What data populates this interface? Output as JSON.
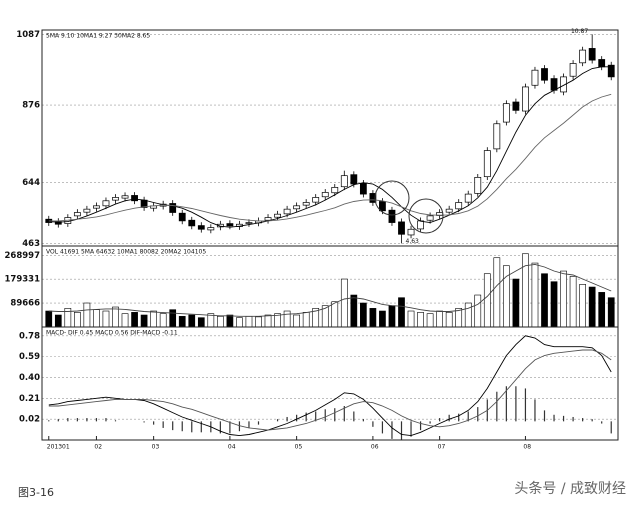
{
  "chart_data": [
    {
      "type": "candlestick",
      "legend_text": "5MA 9.10  10MA1 9.27  30MA2 8.65",
      "open": [
        535,
        528,
        522,
        545,
        556,
        568,
        575,
        592,
        598,
        606,
        592,
        568,
        574,
        582,
        553,
        532,
        516,
        503,
        512,
        522,
        513,
        522,
        524,
        532,
        541,
        551,
        566,
        577,
        586,
        602,
        614,
        632,
        668,
        642,
        612,
        588,
        562,
        527,
        488,
        506,
        532,
        546,
        556,
        566,
        586,
        612,
        662,
        745,
        825,
        885,
        858,
        935,
        985,
        955,
        915,
        962,
        1002,
        1045,
        1012,
        995
      ],
      "high": [
        545,
        538,
        550,
        565,
        575,
        585,
        600,
        610,
        615,
        616,
        602,
        585,
        590,
        592,
        563,
        542,
        526,
        520,
        530,
        532,
        530,
        535,
        540,
        550,
        560,
        575,
        585,
        595,
        610,
        625,
        640,
        680,
        678,
        652,
        622,
        598,
        572,
        537,
        515,
        540,
        555,
        565,
        575,
        595,
        620,
        670,
        750,
        830,
        890,
        895,
        940,
        990,
        995,
        965,
        970,
        1010,
        1050,
        1087,
        1022,
        1005
      ],
      "low": [
        515,
        510,
        512,
        535,
        546,
        558,
        565,
        582,
        588,
        580,
        560,
        558,
        564,
        545,
        520,
        505,
        495,
        493,
        502,
        505,
        503,
        512,
        514,
        522,
        531,
        541,
        556,
        567,
        576,
        592,
        604,
        622,
        630,
        600,
        575,
        550,
        515,
        463,
        478,
        496,
        522,
        536,
        546,
        556,
        576,
        602,
        652,
        735,
        815,
        850,
        848,
        925,
        940,
        910,
        905,
        952,
        992,
        1000,
        980,
        950
      ],
      "close": [
        525,
        520,
        540,
        555,
        565,
        575,
        590,
        600,
        605,
        590,
        570,
        575,
        580,
        555,
        530,
        515,
        505,
        510,
        520,
        515,
        520,
        525,
        530,
        540,
        550,
        565,
        575,
        585,
        600,
        615,
        630,
        665,
        640,
        610,
        585,
        560,
        525,
        490,
        505,
        530,
        545,
        555,
        565,
        585,
        610,
        660,
        740,
        820,
        880,
        860,
        930,
        980,
        950,
        920,
        960,
        1000,
        1040,
        1010,
        990,
        960
      ],
      "lines": [
        {
          "color": "#000000",
          "values": [
            528,
            526,
            528,
            535,
            545,
            556,
            568,
            580,
            590,
            595,
            592,
            585,
            578,
            575,
            568,
            556,
            541,
            525,
            514,
            511,
            514,
            519,
            524,
            530,
            537,
            546,
            556,
            567,
            578,
            592,
            608,
            624,
            638,
            644,
            640,
            624,
            600,
            572,
            547,
            529,
            525,
            535,
            547,
            560,
            575,
            599,
            631,
            680,
            738,
            795,
            845,
            880,
            905,
            920,
            935,
            950,
            970,
            985,
            990,
            990
          ]
        },
        {
          "color": "#666666",
          "values": [
            530,
            530,
            532,
            535,
            538,
            542,
            548,
            555,
            562,
            568,
            572,
            575,
            577,
            576,
            572,
            567,
            560,
            553,
            546,
            540,
            535,
            532,
            530,
            530,
            532,
            536,
            541,
            547,
            554,
            561,
            569,
            580,
            588,
            592,
            593,
            590,
            583,
            572,
            560,
            552,
            548,
            547,
            548,
            552,
            560,
            574,
            596,
            624,
            656,
            684,
            716,
            750,
            778,
            800,
            822,
            846,
            870,
            888,
            900,
            908
          ]
        }
      ],
      "up_color": "#ffffff",
      "down_color": "#000000",
      "annotations": [
        "10.87",
        "4.63"
      ],
      "ylim": [
        455,
        1100
      ],
      "yticks": [
        1087,
        876,
        644,
        463
      ],
      "grid": true
    },
    {
      "type": "bar",
      "legend_text": "VOL 41691  5MA 64632  10MA1 80082  20MA2 104105",
      "values": [
        60000,
        45000,
        70000,
        55000,
        90000,
        65000,
        60000,
        75000,
        50000,
        55000,
        45000,
        60000,
        50000,
        65000,
        40000,
        45000,
        35000,
        50000,
        40000,
        45000,
        35000,
        40000,
        38000,
        45000,
        50000,
        60000,
        45000,
        55000,
        70000,
        80000,
        95000,
        180000,
        120000,
        90000,
        70000,
        60000,
        80000,
        110000,
        60000,
        55000,
        50000,
        60000,
        55000,
        70000,
        90000,
        120000,
        200000,
        260000,
        230000,
        180000,
        275000,
        240000,
        200000,
        170000,
        210000,
        190000,
        160000,
        150000,
        130000,
        110000
      ],
      "lines": [
        {
          "color": "#444444",
          "values": [
            60000,
            58000,
            58000,
            60000,
            64000,
            66000,
            68000,
            68000,
            66000,
            62000,
            58000,
            56000,
            54000,
            52000,
            50000,
            48000,
            46000,
            44000,
            42000,
            42000,
            40000,
            40000,
            40000,
            42000,
            44000,
            48000,
            50000,
            54000,
            60000,
            70000,
            90000,
            105000,
            110000,
            105000,
            95000,
            85000,
            80000,
            78000,
            72000,
            65000,
            60000,
            58000,
            58000,
            62000,
            70000,
            85000,
            115000,
            155000,
            190000,
            210000,
            230000,
            235000,
            225000,
            210000,
            200000,
            195000,
            180000,
            165000,
            150000,
            135000
          ]
        }
      ],
      "ylim": [
        0,
        304000
      ],
      "yticks": [
        268997,
        179331,
        89666
      ],
      "grid": true
    },
    {
      "type": "line",
      "legend_text": "MACD- DIF 0.45  MACD 0.56  DIF-MACD -0.11",
      "categories": [
        "201301",
        null,
        null,
        null,
        null,
        "02",
        null,
        null,
        null,
        null,
        null,
        "03",
        null,
        null,
        null,
        null,
        null,
        null,
        null,
        "04",
        null,
        null,
        null,
        null,
        null,
        null,
        "05",
        null,
        null,
        null,
        null,
        null,
        null,
        null,
        "06",
        null,
        null,
        null,
        null,
        null,
        null,
        "07",
        null,
        null,
        null,
        null,
        null,
        null,
        null,
        null,
        "08",
        null,
        null,
        null,
        null,
        null,
        null,
        null,
        null,
        null
      ],
      "series": [
        {
          "color": "#000000",
          "values": [
            0.15,
            0.16,
            0.18,
            0.19,
            0.2,
            0.21,
            0.22,
            0.21,
            0.2,
            0.2,
            0.19,
            0.16,
            0.12,
            0.08,
            0.04,
            0.01,
            -0.02,
            -0.05,
            -0.09,
            -0.12,
            -0.13,
            -0.12,
            -0.1,
            -0.08,
            -0.05,
            -0.02,
            0.02,
            0.06,
            0.1,
            0.15,
            0.2,
            0.26,
            0.25,
            0.2,
            0.12,
            0.03,
            -0.06,
            -0.12,
            -0.13,
            -0.1,
            -0.06,
            -0.02,
            0.02,
            0.05,
            0.1,
            0.18,
            0.3,
            0.45,
            0.6,
            0.7,
            0.78,
            0.76,
            0.7,
            0.68,
            0.68,
            0.68,
            0.68,
            0.67,
            0.6,
            0.45
          ]
        },
        {
          "color": "#555555",
          "values": [
            0.14,
            0.14,
            0.15,
            0.16,
            0.17,
            0.18,
            0.19,
            0.2,
            0.2,
            0.2,
            0.2,
            0.19,
            0.18,
            0.16,
            0.13,
            0.11,
            0.08,
            0.05,
            0.02,
            -0.01,
            -0.04,
            -0.06,
            -0.07,
            -0.08,
            -0.07,
            -0.06,
            -0.04,
            -0.02,
            0.01,
            0.04,
            0.08,
            0.12,
            0.16,
            0.18,
            0.17,
            0.14,
            0.1,
            0.05,
            0.01,
            -0.02,
            -0.04,
            -0.05,
            -0.04,
            -0.02,
            0.01,
            0.05,
            0.1,
            0.18,
            0.28,
            0.38,
            0.48,
            0.56,
            0.6,
            0.62,
            0.63,
            0.64,
            0.65,
            0.65,
            0.62,
            0.56
          ]
        }
      ],
      "histogram": [
        0.01,
        0.02,
        0.03,
        0.03,
        0.03,
        0.03,
        0.03,
        0.01,
        0,
        0,
        -0.01,
        -0.03,
        -0.06,
        -0.08,
        -0.09,
        -0.1,
        -0.1,
        -0.1,
        -0.11,
        -0.11,
        -0.09,
        -0.06,
        -0.03,
        0,
        0.02,
        0.04,
        0.06,
        0.08,
        0.09,
        0.11,
        0.12,
        0.14,
        0.09,
        0.02,
        -0.05,
        -0.11,
        -0.16,
        -0.17,
        -0.14,
        -0.08,
        -0.02,
        0.03,
        0.06,
        0.07,
        0.09,
        0.13,
        0.2,
        0.27,
        0.32,
        0.32,
        0.3,
        0.2,
        0.1,
        0.06,
        0.05,
        0.04,
        0.03,
        0.02,
        -0.02,
        -0.11
      ],
      "ylim": [
        -0.17,
        0.86
      ],
      "yticks": [
        0.78,
        0.59,
        {
          "value": 0.4,
          "label": "0.40"
        },
        0.21,
        0.02
      ],
      "grid": true
    }
  ],
  "caption": "图3-16",
  "watermark": "头条号 / 成致财经"
}
